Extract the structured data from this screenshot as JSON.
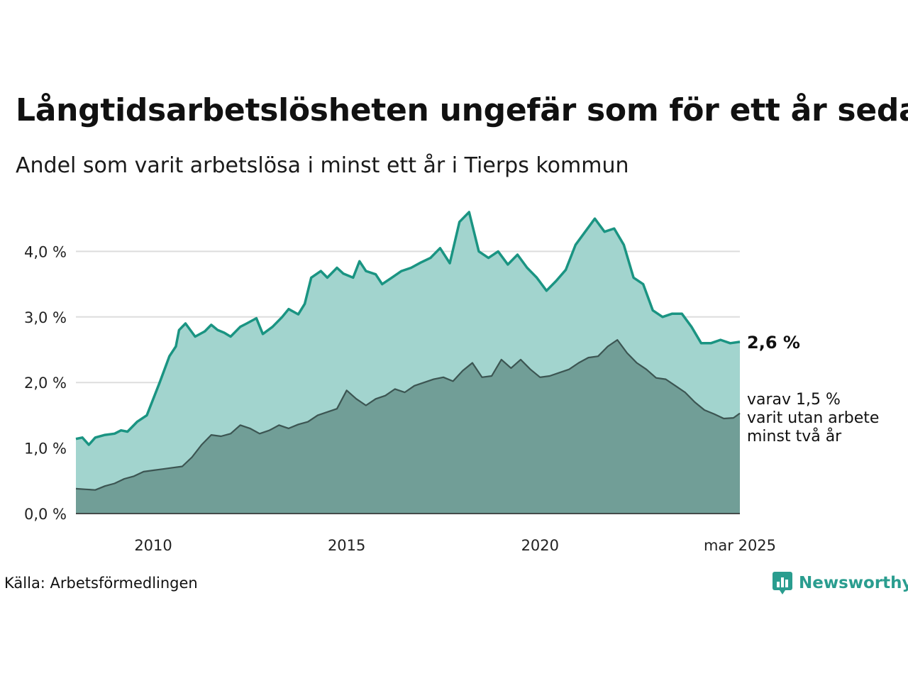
{
  "title": "Långtidsarbetslösheten ungefär som för ett år sedan",
  "subtitle": "Andel som varit arbetslösa i minst ett år i Tierps kommun",
  "source": "Källa: Arbetsförmedlingen",
  "brand": "Newsworthy",
  "colors": {
    "total_line": "#1a9482",
    "total_fill": "#a2d4ce",
    "long_line": "#3c5552",
    "long_fill": "#719e97",
    "grid": "#dddddd",
    "brand": "#2a9d8f"
  },
  "chart_data": {
    "type": "area",
    "title": "Långtidsarbetslösheten ungefär som för ett år sedan",
    "subtitle": "Andel som varit arbetslösa i minst ett år i Tierps kommun",
    "x_tick_labels": [
      "2010",
      "2015",
      "2020",
      "mar 2025"
    ],
    "y_tick_labels": [
      "0,0 %",
      "1,0 %",
      "2,0 %",
      "3,0 %",
      "4,0 %"
    ],
    "ylim": [
      0,
      4.7
    ],
    "y_unit": "%",
    "grid": true,
    "series": [
      {
        "key": "total",
        "points": [
          [
            "2008-01",
            1.14
          ],
          [
            "2008-03",
            1.16
          ],
          [
            "2008-05",
            1.05
          ],
          [
            "2008-07",
            1.16
          ],
          [
            "2008-10",
            1.2
          ],
          [
            "2009-01",
            1.22
          ],
          [
            "2009-03",
            1.27
          ],
          [
            "2009-05",
            1.25
          ],
          [
            "2009-08",
            1.4
          ],
          [
            "2009-11",
            1.5
          ],
          [
            "2010-03",
            2.0
          ],
          [
            "2010-06",
            2.4
          ],
          [
            "2010-08",
            2.55
          ],
          [
            "2010-09",
            2.8
          ],
          [
            "2010-11",
            2.9
          ],
          [
            "2011-02",
            2.7
          ],
          [
            "2011-05",
            2.78
          ],
          [
            "2011-07",
            2.88
          ],
          [
            "2011-09",
            2.8
          ],
          [
            "2011-11",
            2.76
          ],
          [
            "2012-01",
            2.7
          ],
          [
            "2012-04",
            2.85
          ],
          [
            "2012-06",
            2.9
          ],
          [
            "2012-09",
            2.98
          ],
          [
            "2012-11",
            2.74
          ],
          [
            "2013-02",
            2.85
          ],
          [
            "2013-05",
            3.0
          ],
          [
            "2013-07",
            3.12
          ],
          [
            "2013-10",
            3.04
          ],
          [
            "2013-12",
            3.2
          ],
          [
            "2014-02",
            3.6
          ],
          [
            "2014-05",
            3.7
          ],
          [
            "2014-07",
            3.6
          ],
          [
            "2014-10",
            3.75
          ],
          [
            "2014-12",
            3.66
          ],
          [
            "2015-03",
            3.6
          ],
          [
            "2015-05",
            3.85
          ],
          [
            "2015-07",
            3.7
          ],
          [
            "2015-10",
            3.65
          ],
          [
            "2015-12",
            3.5
          ],
          [
            "2016-03",
            3.6
          ],
          [
            "2016-06",
            3.7
          ],
          [
            "2016-09",
            3.75
          ],
          [
            "2016-12",
            3.83
          ],
          [
            "2017-03",
            3.9
          ],
          [
            "2017-06",
            4.05
          ],
          [
            "2017-09",
            3.82
          ],
          [
            "2017-12",
            4.45
          ],
          [
            "2018-03",
            4.6
          ],
          [
            "2018-06",
            4.0
          ],
          [
            "2018-09",
            3.9
          ],
          [
            "2018-12",
            4.0
          ],
          [
            "2019-03",
            3.8
          ],
          [
            "2019-06",
            3.95
          ],
          [
            "2019-09",
            3.75
          ],
          [
            "2019-12",
            3.6
          ],
          [
            "2020-03",
            3.4
          ],
          [
            "2020-06",
            3.55
          ],
          [
            "2020-09",
            3.72
          ],
          [
            "2020-12",
            4.1
          ],
          [
            "2021-03",
            4.3
          ],
          [
            "2021-06",
            4.5
          ],
          [
            "2021-09",
            4.3
          ],
          [
            "2021-12",
            4.35
          ],
          [
            "2022-03",
            4.1
          ],
          [
            "2022-06",
            3.6
          ],
          [
            "2022-09",
            3.5
          ],
          [
            "2022-12",
            3.1
          ],
          [
            "2023-03",
            3.0
          ],
          [
            "2023-06",
            3.05
          ],
          [
            "2023-09",
            3.05
          ],
          [
            "2023-12",
            2.85
          ],
          [
            "2024-03",
            2.6
          ],
          [
            "2024-06",
            2.6
          ],
          [
            "2024-09",
            2.65
          ],
          [
            "2024-12",
            2.6
          ],
          [
            "2025-03",
            2.62
          ]
        ],
        "end_label": "2,6 %"
      },
      {
        "key": "long",
        "points": [
          [
            "2008-01",
            0.38
          ],
          [
            "2008-04",
            0.37
          ],
          [
            "2008-07",
            0.36
          ],
          [
            "2008-10",
            0.42
          ],
          [
            "2009-01",
            0.46
          ],
          [
            "2009-04",
            0.53
          ],
          [
            "2009-07",
            0.57
          ],
          [
            "2009-10",
            0.64
          ],
          [
            "2010-01",
            0.66
          ],
          [
            "2010-04",
            0.68
          ],
          [
            "2010-07",
            0.7
          ],
          [
            "2010-10",
            0.72
          ],
          [
            "2011-01",
            0.86
          ],
          [
            "2011-04",
            1.05
          ],
          [
            "2011-07",
            1.2
          ],
          [
            "2011-10",
            1.18
          ],
          [
            "2012-01",
            1.22
          ],
          [
            "2012-04",
            1.35
          ],
          [
            "2012-07",
            1.3
          ],
          [
            "2012-10",
            1.22
          ],
          [
            "2013-01",
            1.27
          ],
          [
            "2013-04",
            1.35
          ],
          [
            "2013-07",
            1.3
          ],
          [
            "2013-10",
            1.36
          ],
          [
            "2014-01",
            1.4
          ],
          [
            "2014-04",
            1.5
          ],
          [
            "2014-07",
            1.55
          ],
          [
            "2014-10",
            1.6
          ],
          [
            "2015-01",
            1.88
          ],
          [
            "2015-04",
            1.75
          ],
          [
            "2015-07",
            1.65
          ],
          [
            "2015-10",
            1.75
          ],
          [
            "2016-01",
            1.8
          ],
          [
            "2016-04",
            1.9
          ],
          [
            "2016-07",
            1.85
          ],
          [
            "2016-10",
            1.95
          ],
          [
            "2017-01",
            2.0
          ],
          [
            "2017-04",
            2.05
          ],
          [
            "2017-07",
            2.08
          ],
          [
            "2017-10",
            2.02
          ],
          [
            "2018-01",
            2.18
          ],
          [
            "2018-04",
            2.3
          ],
          [
            "2018-07",
            2.08
          ],
          [
            "2018-10",
            2.1
          ],
          [
            "2019-01",
            2.35
          ],
          [
            "2019-04",
            2.22
          ],
          [
            "2019-07",
            2.35
          ],
          [
            "2019-10",
            2.2
          ],
          [
            "2020-01",
            2.08
          ],
          [
            "2020-04",
            2.1
          ],
          [
            "2020-07",
            2.15
          ],
          [
            "2020-10",
            2.2
          ],
          [
            "2021-01",
            2.3
          ],
          [
            "2021-04",
            2.38
          ],
          [
            "2021-07",
            2.4
          ],
          [
            "2021-10",
            2.55
          ],
          [
            "2022-01",
            2.65
          ],
          [
            "2022-04",
            2.45
          ],
          [
            "2022-07",
            2.3
          ],
          [
            "2022-10",
            2.2
          ],
          [
            "2023-01",
            2.07
          ],
          [
            "2023-04",
            2.05
          ],
          [
            "2023-07",
            1.95
          ],
          [
            "2023-10",
            1.85
          ],
          [
            "2024-01",
            1.7
          ],
          [
            "2024-04",
            1.58
          ],
          [
            "2024-07",
            1.52
          ],
          [
            "2024-10",
            1.45
          ],
          [
            "2025-01",
            1.46
          ],
          [
            "2025-03",
            1.53
          ]
        ],
        "end_label_lines": [
          "varav 1,5 %",
          "varit utan arbete",
          "minst två år"
        ]
      }
    ]
  }
}
